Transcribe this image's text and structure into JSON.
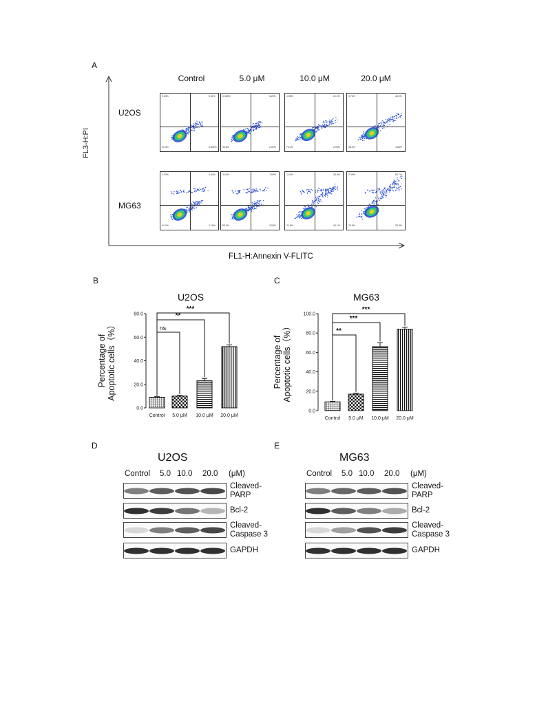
{
  "panels": {
    "A": "A",
    "B": "B",
    "C": "C",
    "D": "D",
    "E": "E"
  },
  "flow": {
    "columns": [
      "Control",
      "5.0 μM",
      "10.0 μM",
      "20.0 μM"
    ],
    "rows": [
      "U2OS",
      "MG63"
    ],
    "x_axis": "FL1-H:Annexin V-FLITC",
    "y_axis": "FL3-H:PI",
    "quadrants": {
      "U2OS": [
        {
          "q1": "2.03%",
          "q2": "5.91%",
          "q3": "0.809%",
          "q4": "91.3%"
        },
        {
          "q1": "0.969%",
          "q2": "6.25%",
          "q3": "2.02%",
          "q4": "90.8%"
        },
        {
          "q1": "1.55%",
          "q2": "21.2%",
          "q3": "2.90%",
          "q4": "74.4%"
        },
        {
          "q1": "3.74%",
          "q2": "43.2%",
          "q3": "4.56%",
          "q4": "48.4%"
        }
      ],
      "MG63": [
        {
          "q1": "3.03%",
          "q2": "3.64%",
          "q3": "2.19%",
          "q4": "91.2%"
        },
        {
          "q1": "3.91%",
          "q2": "7.69%",
          "q3": "2.93%",
          "q4": "85.3%"
        },
        {
          "q1": "1.91%",
          "q2": "36.5%",
          "q3": "40.1%",
          "q4": "21.5%"
        },
        {
          "q1": "2.00%",
          "q2": "50.7%",
          "q3": "23.3%",
          "q4": "23.9%"
        }
      ]
    }
  },
  "chart_data": [
    {
      "type": "bar",
      "title": "U2OS",
      "ylabel_line1": "Percentage of",
      "ylabel_line2": "Apoptotic cells（%）",
      "categories": [
        "Control",
        "5.0 μM",
        "10.0 μM",
        "20.0 μM"
      ],
      "values": [
        9.0,
        10.0,
        23.0,
        52.0
      ],
      "errors": [
        0.5,
        0.6,
        2.0,
        1.5
      ],
      "ylim": [
        0,
        80
      ],
      "yticks": [
        "0.0",
        "20.0",
        "40.0",
        "60.0",
        "80.0"
      ],
      "significance": [
        {
          "to": 1,
          "label": "ns"
        },
        {
          "to": 2,
          "label": "**"
        },
        {
          "to": 3,
          "label": "***"
        }
      ]
    },
    {
      "type": "bar",
      "title": "MG63",
      "ylabel_line1": "Percentage of",
      "ylabel_line2": "Apoptotic cells（%）",
      "categories": [
        "Control",
        "5.0 μM",
        "10.0 μM",
        "20.0 μM"
      ],
      "values": [
        9.0,
        17.0,
        66.0,
        84.0
      ],
      "errors": [
        0.5,
        1.0,
        4.0,
        2.0
      ],
      "ylim": [
        0,
        100
      ],
      "yticks": [
        "0.0",
        "20.0",
        "40.0",
        "60.0",
        "80.0",
        "100.0"
      ],
      "significance": [
        {
          "to": 1,
          "label": "**"
        },
        {
          "to": 2,
          "label": "***"
        },
        {
          "to": 3,
          "label": "***"
        }
      ]
    }
  ],
  "blots": {
    "D": {
      "title": "U2OS",
      "header": [
        "Control",
        "5.0",
        "10.0",
        "20.0",
        "(μM)"
      ],
      "labels": [
        [
          "Cleaved-",
          "PARP"
        ],
        [
          "Bcl-2"
        ],
        [
          "Cleaved-",
          "Caspase 3"
        ],
        [
          "GAPDH"
        ]
      ],
      "intensity": [
        [
          0.55,
          0.7,
          0.75,
          0.8
        ],
        [
          0.9,
          0.85,
          0.6,
          0.3
        ],
        [
          0.15,
          0.55,
          0.7,
          0.8
        ],
        [
          0.9,
          0.9,
          0.9,
          0.9
        ]
      ]
    },
    "E": {
      "title": "MG63",
      "header": [
        "Control",
        "5.0",
        "10.0",
        "20.0",
        "(μM)"
      ],
      "labels": [
        [
          "Cleaved-",
          "PARP"
        ],
        [
          "Bcl-2"
        ],
        [
          "Cleaved-",
          "Caspase 3"
        ],
        [
          "GAPDH"
        ]
      ],
      "intensity": [
        [
          0.55,
          0.65,
          0.7,
          0.75
        ],
        [
          0.9,
          0.7,
          0.55,
          0.35
        ],
        [
          0.15,
          0.4,
          0.75,
          0.85
        ],
        [
          0.9,
          0.9,
          0.9,
          0.9
        ]
      ]
    }
  },
  "colors": {
    "flow_low": "#2a4fd6",
    "flow_mid": "#2fd46a",
    "flow_high": "#f0d020",
    "band": "#1a1a1a"
  }
}
